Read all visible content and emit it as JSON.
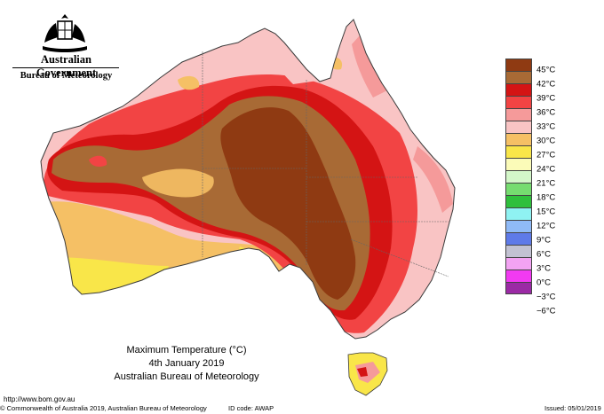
{
  "header": {
    "government": "Australian Government",
    "agency": "Bureau of Meteorology"
  },
  "title": {
    "line1": "Maximum Temperature (°C)",
    "line2": "4th January 2019",
    "line3": "Australian Bureau of Meteorology"
  },
  "url": "http://www.bom.gov.au",
  "footer": {
    "copyright": "© Commonwealth of Australia 2019, Australian Bureau of Meteorology",
    "id_code": "ID code: AWAP",
    "issued": "Issued: 05/01/2019"
  },
  "legend": {
    "labels": [
      "45°C",
      "42°C",
      "39°C",
      "36°C",
      "33°C",
      "30°C",
      "27°C",
      "24°C",
      "21°C",
      "18°C",
      "15°C",
      "12°C",
      "9°C",
      "6°C",
      "3°C",
      "0°C",
      "−3°C",
      "−6°C"
    ],
    "colors": [
      "#8f3a12",
      "#a86a35",
      "#d41414",
      "#f24444",
      "#f59a9a",
      "#f9c4c4",
      "#f5c065",
      "#f9e649",
      "#fbfbb8",
      "#d4f7c9",
      "#76dc70",
      "#2fbf3c",
      "#8ff2f2",
      "#8fbaf7",
      "#5e7ae8",
      "#c2c2d2",
      "#f3a3f3",
      "#f23af2",
      "#9b2aa5"
    ]
  },
  "map_colors": {
    "ocean": "#ffffff",
    "coast": "#3a3a3a"
  }
}
